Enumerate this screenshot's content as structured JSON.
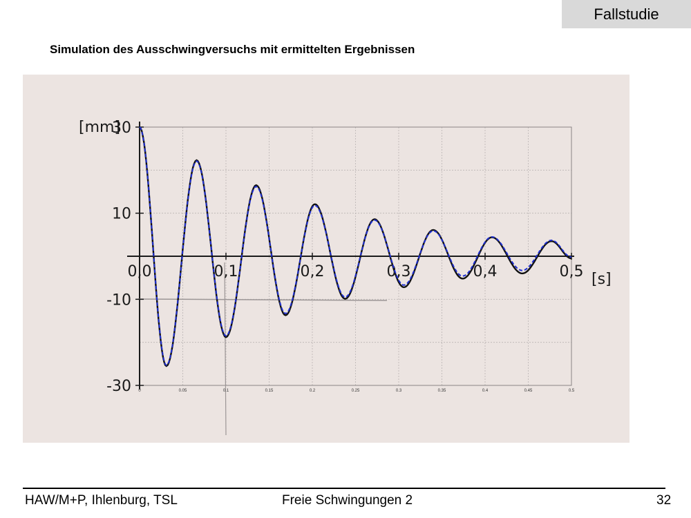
{
  "header": {
    "badge": "Fallstudie"
  },
  "slide": {
    "title": "Simulation des Ausschwingversuchs mit ermittelten Ergebnissen"
  },
  "footer": {
    "left": "HAW/M+P, Ihlenburg, TSL",
    "center": "Freie Schwingungen 2",
    "right": "32"
  },
  "chart_data": {
    "type": "line",
    "title": "",
    "ylabel": "[mm]",
    "xlabel": "[s]",
    "xlim": [
      0,
      0.5
    ],
    "ylim": [
      -30,
      30
    ],
    "grid": true,
    "y_major_ticks": [
      "30",
      "10",
      "-10",
      "-30"
    ],
    "x_major_ticks": [
      "0,0",
      "0,1",
      "0,2",
      "0,3",
      "0,4",
      "0,5"
    ],
    "x_minor_ticks": [
      "0",
      "0.05",
      "0.1",
      "0.15",
      "0.2",
      "0.25",
      "0.3",
      "0.35",
      "0.4",
      "0.45",
      "0.5"
    ],
    "series": [
      {
        "style": "solid",
        "color": "#111111",
        "x": [
          0,
          0.031,
          0.066,
          0.1,
          0.135,
          0.169,
          0.203,
          0.238,
          0.272,
          0.306,
          0.34,
          0.374,
          0.408,
          0.443,
          0.477,
          0.5
        ],
        "y": [
          30,
          -25.5,
          22.3,
          -18.8,
          16.5,
          -13.7,
          12.1,
          -9.9,
          8.6,
          -7.2,
          6.1,
          -5.2,
          4.4,
          -4.0,
          3.5,
          -0.5
        ]
      },
      {
        "style": "dashed",
        "color": "#1f2fd0",
        "x": [
          0,
          0.031,
          0.066,
          0.1,
          0.135,
          0.169,
          0.203,
          0.238,
          0.272,
          0.306,
          0.34,
          0.374,
          0.408,
          0.443,
          0.477,
          0.5
        ],
        "y": [
          30,
          -25.3,
          22.1,
          -18.5,
          16.2,
          -13.3,
          11.8,
          -9.5,
          8.4,
          -6.7,
          5.9,
          -4.6,
          4.5,
          -3.3,
          3.7,
          -0.2
        ]
      }
    ]
  }
}
